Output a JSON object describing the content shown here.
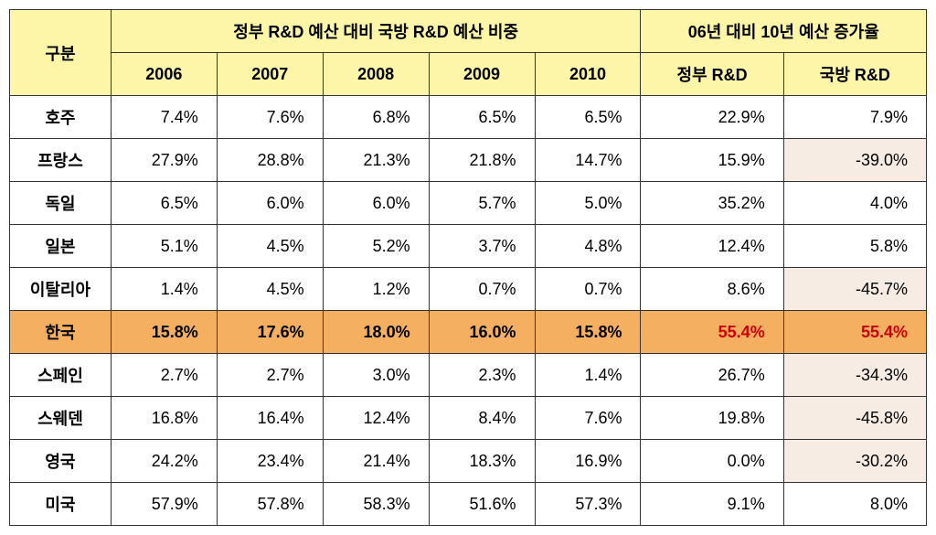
{
  "headers": {
    "category": "구분",
    "ratio_group": "정부 R&D 예산 대비 국방 R&D 예산 비중",
    "growth_group": "06년 대비 10년 예산 증가율",
    "years": [
      "2006",
      "2007",
      "2008",
      "2009",
      "2010"
    ],
    "growth_gov": "정부 R&D",
    "growth_def": "국방 R&D"
  },
  "colors": {
    "header_bg": "#fdf5a8",
    "highlight_bg": "#f4b060",
    "negative_bg": "#f7ece4",
    "highlight_text": "#cc0000",
    "border": "#333333"
  },
  "rows": [
    {
      "country": "호주",
      "values": [
        "7.4%",
        "7.6%",
        "6.8%",
        "6.5%",
        "6.5%"
      ],
      "gov": "22.9%",
      "def": "7.9%",
      "highlight": false,
      "gov_neg": false,
      "def_neg": false
    },
    {
      "country": "프랑스",
      "values": [
        "27.9%",
        "28.8%",
        "21.3%",
        "21.8%",
        "14.7%"
      ],
      "gov": "15.9%",
      "def": "-39.0%",
      "highlight": false,
      "gov_neg": false,
      "def_neg": true
    },
    {
      "country": "독일",
      "values": [
        "6.5%",
        "6.0%",
        "6.0%",
        "5.7%",
        "5.0%"
      ],
      "gov": "35.2%",
      "def": "4.0%",
      "highlight": false,
      "gov_neg": false,
      "def_neg": false
    },
    {
      "country": "일본",
      "values": [
        "5.1%",
        "4.5%",
        "5.2%",
        "3.7%",
        "4.8%"
      ],
      "gov": "12.4%",
      "def": "5.8%",
      "highlight": false,
      "gov_neg": false,
      "def_neg": false
    },
    {
      "country": "이탈리아",
      "values": [
        "1.4%",
        "4.5%",
        "1.2%",
        "0.7%",
        "0.7%"
      ],
      "gov": "8.6%",
      "def": "-45.7%",
      "highlight": false,
      "gov_neg": false,
      "def_neg": true
    },
    {
      "country": "한국",
      "values": [
        "15.8%",
        "17.6%",
        "18.0%",
        "16.0%",
        "15.8%"
      ],
      "gov": "55.4%",
      "def": "55.4%",
      "highlight": true,
      "gov_neg": false,
      "def_neg": false
    },
    {
      "country": "스페인",
      "values": [
        "2.7%",
        "2.7%",
        "3.0%",
        "2.3%",
        "1.4%"
      ],
      "gov": "26.7%",
      "def": "-34.3%",
      "highlight": false,
      "gov_neg": false,
      "def_neg": true
    },
    {
      "country": "스웨덴",
      "values": [
        "16.8%",
        "16.4%",
        "12.4%",
        "8.4%",
        "7.6%"
      ],
      "gov": "19.8%",
      "def": "-45.8%",
      "highlight": false,
      "gov_neg": false,
      "def_neg": true
    },
    {
      "country": "영국",
      "values": [
        "24.2%",
        "23.4%",
        "21.4%",
        "18.3%",
        "16.9%"
      ],
      "gov": "0.0%",
      "def": "-30.2%",
      "highlight": false,
      "gov_neg": false,
      "def_neg": true
    },
    {
      "country": "미국",
      "values": [
        "57.9%",
        "57.8%",
        "58.3%",
        "51.6%",
        "57.3%"
      ],
      "gov": "9.1%",
      "def": "8.0%",
      "highlight": false,
      "gov_neg": false,
      "def_neg": false
    }
  ]
}
